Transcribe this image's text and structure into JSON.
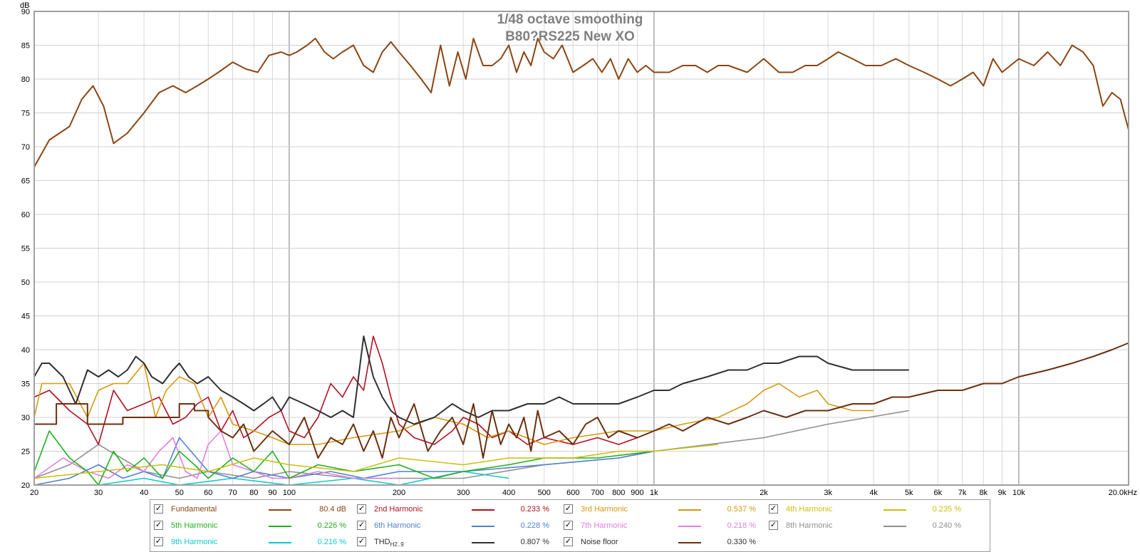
{
  "chart_data": {
    "type": "line",
    "title": "1/48 octave smoothing",
    "subtitle": "B80?RS225 New XO",
    "ylabel": "dB",
    "xlabel": "",
    "x_scale": "log",
    "xlim": [
      20,
      20000
    ],
    "ylim": [
      20,
      90
    ],
    "grid": true,
    "y_ticks": [
      20,
      25,
      30,
      35,
      40,
      45,
      50,
      55,
      60,
      65,
      70,
      75,
      80,
      85,
      90
    ],
    "x_ticks": [
      {
        "v": 20,
        "label": "20"
      },
      {
        "v": 30,
        "label": "30"
      },
      {
        "v": 40,
        "label": "40"
      },
      {
        "v": 50,
        "label": "50"
      },
      {
        "v": 60,
        "label": "60"
      },
      {
        "v": 70,
        "label": "70"
      },
      {
        "v": 80,
        "label": "80"
      },
      {
        "v": 90,
        "label": "90"
      },
      {
        "v": 100,
        "label": "100"
      },
      {
        "v": 200,
        "label": "200"
      },
      {
        "v": 300,
        "label": "300"
      },
      {
        "v": 400,
        "label": "400"
      },
      {
        "v": 500,
        "label": "500"
      },
      {
        "v": 600,
        "label": "600"
      },
      {
        "v": 700,
        "label": "700"
      },
      {
        "v": 800,
        "label": "800"
      },
      {
        "v": 900,
        "label": "900"
      },
      {
        "v": 1000,
        "label": "1k"
      },
      {
        "v": 2000,
        "label": "2k"
      },
      {
        "v": 3000,
        "label": "3k"
      },
      {
        "v": 4000,
        "label": "4k"
      },
      {
        "v": 5000,
        "label": "5k"
      },
      {
        "v": 6000,
        "label": "6k"
      },
      {
        "v": 7000,
        "label": "7k"
      },
      {
        "v": 8000,
        "label": "8k"
      },
      {
        "v": 9000,
        "label": "9k"
      },
      {
        "v": 10000,
        "label": "10k"
      },
      {
        "v": 20000,
        "label": "20.0kHz"
      }
    ],
    "legend_position": "bottom",
    "series": [
      {
        "name": "Fundamental",
        "color": "#8b4513",
        "value": "80.4 dB",
        "checked": true,
        "x": [
          20,
          22,
          25,
          27,
          29,
          31,
          33,
          36,
          40,
          44,
          48,
          52,
          56,
          60,
          64,
          70,
          76,
          82,
          88,
          95,
          100,
          105,
          112,
          118,
          125,
          132,
          140,
          150,
          160,
          170,
          180,
          190,
          200,
          215,
          230,
          245,
          260,
          275,
          290,
          305,
          320,
          340,
          360,
          380,
          400,
          420,
          440,
          460,
          480,
          500,
          530,
          560,
          600,
          640,
          680,
          720,
          760,
          800,
          850,
          900,
          950,
          1000,
          1100,
          1200,
          1300,
          1400,
          1500,
          1600,
          1800,
          2000,
          2200,
          2400,
          2600,
          2800,
          3000,
          3200,
          3500,
          3800,
          4200,
          4600,
          5000,
          5500,
          6000,
          6500,
          7000,
          7500,
          8000,
          8500,
          9000,
          10000,
          11000,
          12000,
          13000,
          14000,
          15000,
          16000,
          17000,
          18000,
          19000,
          20000
        ],
        "y": [
          67,
          71,
          73,
          77,
          79,
          76,
          70.5,
          72,
          75,
          78,
          79,
          78,
          79,
          80,
          81,
          82.5,
          81.5,
          81,
          83.5,
          84,
          83.5,
          84,
          85,
          86,
          84,
          83,
          84,
          85,
          82,
          81,
          84,
          85.5,
          84,
          82,
          80,
          78,
          85,
          79,
          84,
          80,
          86,
          82,
          82,
          83,
          85,
          81,
          84,
          82,
          86,
          84,
          83,
          85,
          81,
          82,
          83,
          81,
          83,
          80,
          83,
          81,
          82,
          81,
          81,
          82,
          82,
          81,
          82,
          82,
          81,
          83,
          81,
          81,
          82,
          82,
          83,
          84,
          83,
          82,
          82,
          83,
          82,
          81,
          80,
          79,
          80,
          81,
          79,
          83,
          81,
          83,
          82,
          84,
          82,
          85,
          84,
          82,
          76,
          78,
          77,
          72.5
        ]
      },
      {
        "name": "2nd Harmonic",
        "color": "#b01020",
        "value": "0.233 %",
        "checked": true,
        "x": [
          20,
          22,
          25,
          28,
          30,
          33,
          36,
          40,
          44,
          48,
          52,
          56,
          60,
          65,
          70,
          75,
          80,
          88,
          95,
          100,
          110,
          120,
          130,
          140,
          150,
          160,
          170,
          180,
          190,
          200,
          220,
          250,
          280,
          300,
          330,
          360,
          400,
          450,
          500,
          600,
          700,
          800,
          900,
          1000
        ],
        "y": [
          33,
          34,
          31,
          29,
          26,
          34,
          31,
          32,
          33,
          29,
          30,
          32,
          33,
          28,
          31,
          27,
          28,
          30,
          31,
          28,
          27,
          30,
          35,
          33,
          36,
          34,
          42,
          38,
          33,
          29,
          27,
          26,
          28,
          30,
          29,
          27,
          28,
          26,
          27,
          26,
          27,
          26,
          27,
          28
        ]
      },
      {
        "name": "3rd Harmonic",
        "color": "#d49a10",
        "value": "0.537 %",
        "checked": true,
        "x": [
          20,
          21,
          23,
          25,
          28,
          30,
          33,
          36,
          40,
          43,
          46,
          50,
          55,
          60,
          65,
          70,
          80,
          90,
          100,
          120,
          150,
          200,
          250,
          300,
          350,
          400,
          500,
          600,
          800,
          1000,
          1200,
          1500,
          1800,
          2000,
          2200,
          2500,
          2800,
          3000,
          3500,
          4000
        ],
        "y": [
          30,
          35,
          35,
          35,
          30,
          34,
          35,
          35,
          38,
          30,
          34,
          36,
          35,
          30,
          33,
          29,
          28,
          27,
          26,
          26,
          27,
          28,
          30,
          29,
          27,
          28,
          26,
          27,
          28,
          28,
          29,
          30,
          32,
          34,
          35,
          33,
          34,
          32,
          31,
          31
        ]
      },
      {
        "name": "4th Harmonic",
        "color": "#c8c010",
        "value": "0.235 %",
        "checked": true,
        "x": [
          20,
          30,
          45,
          60,
          80,
          100,
          150,
          200,
          300,
          400,
          600,
          800,
          1000,
          1500
        ],
        "y": [
          21,
          22,
          23,
          22,
          24,
          23,
          22,
          24,
          23,
          24,
          24,
          25,
          25,
          26
        ]
      },
      {
        "name": "5th Harmonic",
        "color": "#20b020",
        "value": "0.226 %",
        "checked": true,
        "x": [
          20,
          22,
          25,
          28,
          30,
          33,
          36,
          40,
          45,
          50,
          55,
          60,
          70,
          80,
          90,
          100,
          120,
          150,
          200,
          250,
          300,
          400,
          500,
          700,
          1000
        ],
        "y": [
          22,
          28,
          24,
          22,
          20,
          25,
          22,
          24,
          21,
          25,
          23,
          21,
          24,
          22,
          25,
          21,
          23,
          22,
          23,
          21,
          22,
          23,
          24,
          24,
          25
        ]
      },
      {
        "name": "6th Harmonic",
        "color": "#5080d0",
        "value": "0.228 %",
        "checked": true,
        "x": [
          20,
          25,
          30,
          35,
          40,
          45,
          50,
          60,
          70,
          80,
          100,
          130,
          160,
          200,
          300,
          500,
          800,
          1000
        ],
        "y": [
          20,
          21,
          23,
          21,
          22,
          21,
          27,
          22,
          21,
          22,
          21,
          22,
          21,
          22,
          22,
          23,
          24,
          25
        ]
      },
      {
        "name": "7th Harmonic",
        "color": "#e080e0",
        "value": "0.218 %",
        "checked": true,
        "x": [
          20,
          24,
          28,
          32,
          36,
          40,
          44,
          48,
          52,
          56,
          60,
          65,
          70,
          80,
          90,
          100,
          120,
          150,
          200
        ],
        "y": [
          21,
          24,
          22,
          21,
          23,
          22,
          25,
          27,
          22,
          21,
          26,
          28,
          23,
          22,
          21,
          21,
          22,
          21,
          21
        ]
      },
      {
        "name": "8th Harmonic",
        "color": "#909090",
        "value": "0.240 %",
        "checked": true,
        "x": [
          20,
          25,
          30,
          40,
          50,
          60,
          80,
          100,
          150,
          200,
          300,
          500,
          800,
          1000,
          2000,
          3000,
          5000
        ],
        "y": [
          21,
          23,
          26,
          22,
          21,
          22,
          21,
          22,
          21,
          21,
          21,
          23,
          24,
          25,
          27,
          29,
          31
        ]
      },
      {
        "name": "9th Harmonic",
        "color": "#10c8d0",
        "value": "0.216 %",
        "checked": true,
        "x": [
          20,
          30,
          40,
          50,
          70,
          100,
          150,
          200,
          300,
          400
        ],
        "y": [
          20,
          20,
          21,
          20,
          21,
          20,
          21,
          20,
          22,
          21
        ]
      },
      {
        "name": "THD H2..9",
        "color": "#303030",
        "value": "0.807 %",
        "checked": true,
        "x": [
          20,
          21,
          22,
          24,
          26,
          28,
          30,
          32,
          34,
          36,
          38,
          40,
          42,
          45,
          48,
          50,
          53,
          56,
          60,
          65,
          70,
          75,
          80,
          85,
          90,
          95,
          100,
          110,
          120,
          130,
          140,
          150,
          160,
          170,
          180,
          190,
          200,
          220,
          250,
          280,
          300,
          330,
          360,
          400,
          450,
          500,
          550,
          600,
          700,
          800,
          900,
          1000,
          1100,
          1200,
          1400,
          1600,
          1800,
          2000,
          2200,
          2500,
          2800,
          3000,
          3500,
          4000,
          4500,
          5000
        ],
        "y": [
          36,
          38,
          38,
          36,
          32,
          37,
          36,
          37,
          36,
          37,
          39,
          38,
          36,
          35,
          37,
          38,
          36,
          35,
          36,
          34,
          33,
          32,
          31,
          32,
          33,
          31,
          33,
          32,
          31,
          30,
          31,
          30,
          42,
          36,
          33,
          31,
          30,
          29,
          30,
          32,
          31,
          30,
          31,
          31,
          32,
          32,
          33,
          32,
          32,
          32,
          33,
          34,
          34,
          35,
          36,
          37,
          37,
          38,
          38,
          39,
          39,
          38,
          37,
          37,
          37,
          37
        ]
      },
      {
        "name": "Noise floor",
        "color": "#6b3010",
        "value": "0.330 %",
        "checked": true,
        "x": [
          20,
          23,
          23,
          28,
          28,
          30,
          30,
          35,
          35,
          40,
          40,
          50,
          50,
          55,
          55,
          60,
          60,
          65,
          70,
          75,
          80,
          90,
          100,
          110,
          120,
          130,
          140,
          150,
          160,
          170,
          180,
          190,
          200,
          220,
          240,
          260,
          280,
          300,
          320,
          340,
          360,
          380,
          400,
          420,
          440,
          460,
          480,
          500,
          550,
          600,
          650,
          700,
          750,
          800,
          900,
          1000,
          1100,
          1200,
          1400,
          1600,
          1800,
          2000,
          2300,
          2600,
          3000,
          3500,
          4000,
          4500,
          5000,
          6000,
          7000,
          8000,
          9000,
          10000,
          12000,
          14000,
          16000,
          18000,
          20000
        ],
        "y": [
          29,
          29,
          32,
          32,
          29,
          29,
          29,
          29,
          30,
          30,
          30,
          30,
          32,
          32,
          31,
          31,
          30,
          28,
          27,
          29,
          25,
          28,
          26,
          30,
          24,
          27,
          26,
          29,
          25,
          28,
          24,
          30,
          27,
          32,
          25,
          28,
          30,
          26,
          32,
          24,
          31,
          26,
          29,
          27,
          30,
          25,
          31,
          27,
          28,
          26,
          29,
          30,
          27,
          28,
          27,
          28,
          29,
          28,
          30,
          29,
          30,
          31,
          30,
          31,
          31,
          32,
          32,
          33,
          33,
          34,
          34,
          35,
          35,
          36,
          37,
          38,
          39,
          40,
          41
        ]
      }
    ]
  },
  "legend": [
    {
      "label": "Fundamental",
      "value": "80.4 dB",
      "color": "#8b4513",
      "text_color": "#8b4513",
      "checked": true
    },
    {
      "label": "2nd Harmonic",
      "value": "0.233 %",
      "color": "#b01020",
      "text_color": "#b01020",
      "checked": true
    },
    {
      "label": "3rd Harmonic",
      "value": "0.537 %",
      "color": "#d49a10",
      "text_color": "#d49a10",
      "checked": true
    },
    {
      "label": "4th Harmonic",
      "value": "0.235 %",
      "color": "#c8c010",
      "text_color": "#c8c010",
      "checked": true
    },
    {
      "label": "5th Harmonic",
      "value": "0.226 %",
      "color": "#20b020",
      "text_color": "#20b020",
      "checked": true
    },
    {
      "label": "6th Harmonic",
      "value": "0.228 %",
      "color": "#5080d0",
      "text_color": "#5080d0",
      "checked": true
    },
    {
      "label": "7th Harmonic",
      "value": "0.218 %",
      "color": "#e080e0",
      "text_color": "#e080e0",
      "checked": true
    },
    {
      "label": "8th Harmonic",
      "value": "0.240 %",
      "color": "#909090",
      "text_color": "#909090",
      "checked": true
    },
    {
      "label": "9th Harmonic",
      "value": "0.216 %",
      "color": "#10c8d0",
      "text_color": "#10c8d0",
      "checked": true
    },
    {
      "label": "THD",
      "subscript": "H2..9",
      "value": "0.807 %",
      "color": "#303030",
      "text_color": "#303030",
      "checked": true
    },
    {
      "label": "Noise floor",
      "value": "0.330 %",
      "color": "#6b3010",
      "text_color": "#303030",
      "checked": true
    }
  ],
  "check_glyph": "✓"
}
